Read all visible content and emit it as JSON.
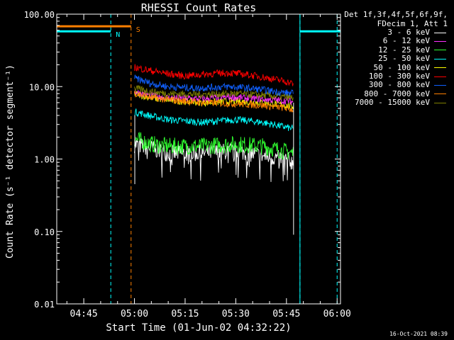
{
  "chart_data": {
    "type": "line",
    "title": "RHESSI Count Rates",
    "xlabel": "Start Time (01-Jun-02 04:32:22)",
    "ylabel": "Count Rate (s⁻¹ detector segment⁻¹)",
    "yscale": "log",
    "xlim_minutes": [
      -23,
      61
    ],
    "ylim": [
      0.01,
      100
    ],
    "x_ticks": [
      "04:45",
      "05:00",
      "05:15",
      "05:30",
      "05:45",
      "06:00"
    ],
    "x_tick_minutes": [
      -15,
      0,
      15,
      30,
      45,
      60
    ],
    "y_ticks": [
      "100.00",
      "10.00",
      "1.00",
      "0.10",
      "0.01"
    ],
    "y_tick_values": [
      100,
      10,
      1,
      0.1,
      0.01
    ],
    "data_window_minutes": [
      0,
      47
    ],
    "series": [
      {
        "name": "3 - 6 keV",
        "color": "#ffffff",
        "points": [
          [
            0,
            1.6
          ],
          [
            5,
            1.4
          ],
          [
            10,
            1.2
          ],
          [
            20,
            1.2
          ],
          [
            30,
            1.3
          ],
          [
            38,
            1.1
          ],
          [
            44,
            1.0
          ],
          [
            47,
            0.9
          ]
        ]
      },
      {
        "name": "6 - 12 keV",
        "color": "#ff30ff",
        "points": [
          [
            0,
            8.5
          ],
          [
            5,
            7.5
          ],
          [
            10,
            7.0
          ],
          [
            20,
            6.8
          ],
          [
            28,
            7.2
          ],
          [
            36,
            6.8
          ],
          [
            42,
            6.5
          ],
          [
            47,
            6.2
          ]
        ]
      },
      {
        "name": "12 - 25 keV",
        "color": "#30ff30",
        "points": [
          [
            0,
            1.9
          ],
          [
            5,
            1.6
          ],
          [
            10,
            1.5
          ],
          [
            20,
            1.5
          ],
          [
            30,
            1.6
          ],
          [
            38,
            1.5
          ],
          [
            44,
            1.3
          ],
          [
            47,
            1.2
          ]
        ]
      },
      {
        "name": "25 - 50 keV",
        "color": "#00ffff",
        "points": [
          [
            0,
            4.5
          ],
          [
            5,
            3.9
          ],
          [
            10,
            3.5
          ],
          [
            20,
            3.2
          ],
          [
            30,
            3.5
          ],
          [
            38,
            3.2
          ],
          [
            44,
            2.8
          ],
          [
            47,
            2.6
          ]
        ]
      },
      {
        "name": "50 - 100 keV",
        "color": "#ffff00",
        "points": [
          [
            0,
            8.0
          ],
          [
            5,
            7.0
          ],
          [
            10,
            6.5
          ],
          [
            20,
            6.0
          ],
          [
            30,
            6.3
          ],
          [
            38,
            6.0
          ],
          [
            44,
            5.6
          ],
          [
            47,
            5.3
          ]
        ]
      },
      {
        "name": "100 - 300 keV",
        "color": "#ff0000",
        "points": [
          [
            0,
            18.5
          ],
          [
            5,
            16.5
          ],
          [
            10,
            15
          ],
          [
            15,
            14
          ],
          [
            22,
            15
          ],
          [
            28,
            15.5
          ],
          [
            34,
            14.5
          ],
          [
            40,
            13
          ],
          [
            44,
            12
          ],
          [
            47,
            11
          ]
        ]
      },
      {
        "name": "300 - 800 keV",
        "color": "#1060ff",
        "points": [
          [
            0,
            13
          ],
          [
            5,
            11
          ],
          [
            10,
            10
          ],
          [
            18,
            9.5
          ],
          [
            28,
            10
          ],
          [
            36,
            9.3
          ],
          [
            42,
            8.5
          ],
          [
            47,
            8.0
          ]
        ]
      },
      {
        "name": "800 - 7000 keV",
        "color": "#ff8000",
        "points": [
          [
            0,
            8.2
          ],
          [
            5,
            7.0
          ],
          [
            10,
            6.6
          ],
          [
            20,
            6.0
          ],
          [
            30,
            5.8
          ],
          [
            38,
            5.5
          ],
          [
            44,
            5.1
          ],
          [
            47,
            4.8
          ]
        ]
      },
      {
        "name": "7000 - 15000 keV",
        "color": "#808000",
        "points": [
          [
            0,
            9.5
          ],
          [
            5,
            8.5
          ],
          [
            10,
            8.0
          ],
          [
            20,
            7.8
          ],
          [
            30,
            8.0
          ],
          [
            38,
            7.6
          ],
          [
            44,
            7.2
          ],
          [
            47,
            7.0
          ]
        ]
      }
    ],
    "intervals": [
      {
        "label": "N",
        "color": "#00ffff",
        "level": 58,
        "ranges": [
          [
            -23,
            -7
          ],
          [
            49,
            61
          ]
        ],
        "boundaries": [
          -23,
          -7,
          49,
          60
        ]
      },
      {
        "label": "S",
        "color": "#ff8000",
        "level": 68,
        "ranges": [
          [
            -23,
            -1
          ]
        ],
        "boundaries": [
          -1
        ]
      }
    ]
  },
  "legend": {
    "header_line1": "Det 1f,3f,4f,5f,6f,9f,",
    "header_line2": "FDecim 1, Att 1"
  },
  "timestamp": "16-Oct-2021 08:39"
}
